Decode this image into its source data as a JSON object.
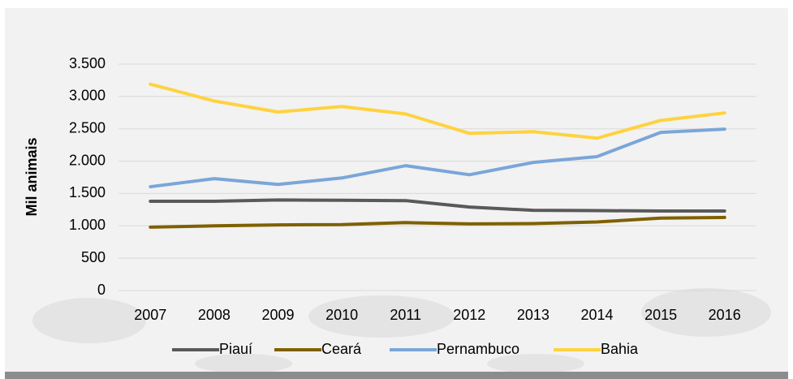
{
  "chart_data": {
    "type": "line",
    "y_label": "Mil animais",
    "categories": [
      "2007",
      "2008",
      "2009",
      "2010",
      "2011",
      "2012",
      "2013",
      "2014",
      "2015",
      "2016"
    ],
    "series": [
      {
        "name": "Piauí",
        "color": "#595959",
        "values": [
          1380,
          1380,
          1400,
          1395,
          1390,
          1290,
          1240,
          1235,
          1230,
          1230
        ]
      },
      {
        "name": "Ceará",
        "color": "#7f6000",
        "values": [
          980,
          1000,
          1015,
          1020,
          1050,
          1030,
          1035,
          1060,
          1120,
          1130
        ]
      },
      {
        "name": "Pernambuco",
        "color": "#7aa6d8",
        "values": [
          1605,
          1730,
          1640,
          1740,
          1930,
          1790,
          1980,
          2070,
          2445,
          2495
        ]
      },
      {
        "name": "Bahia",
        "color": "#ffd23f",
        "values": [
          3190,
          2930,
          2760,
          2845,
          2730,
          2430,
          2455,
          2355,
          2630,
          2745
        ]
      }
    ],
    "ylim": [
      0,
      3500
    ],
    "yticks": [
      0,
      500,
      {
        "value": 1000,
        "label": "1.000"
      },
      {
        "value": 1500,
        "label": "1.500"
      },
      {
        "value": 2000,
        "label": "2.000"
      },
      {
        "value": 2500,
        "label": "2.500"
      },
      {
        "value": 3000,
        "label": "3.000"
      },
      {
        "value": 3500,
        "label": "3.500"
      }
    ],
    "grid": true
  }
}
